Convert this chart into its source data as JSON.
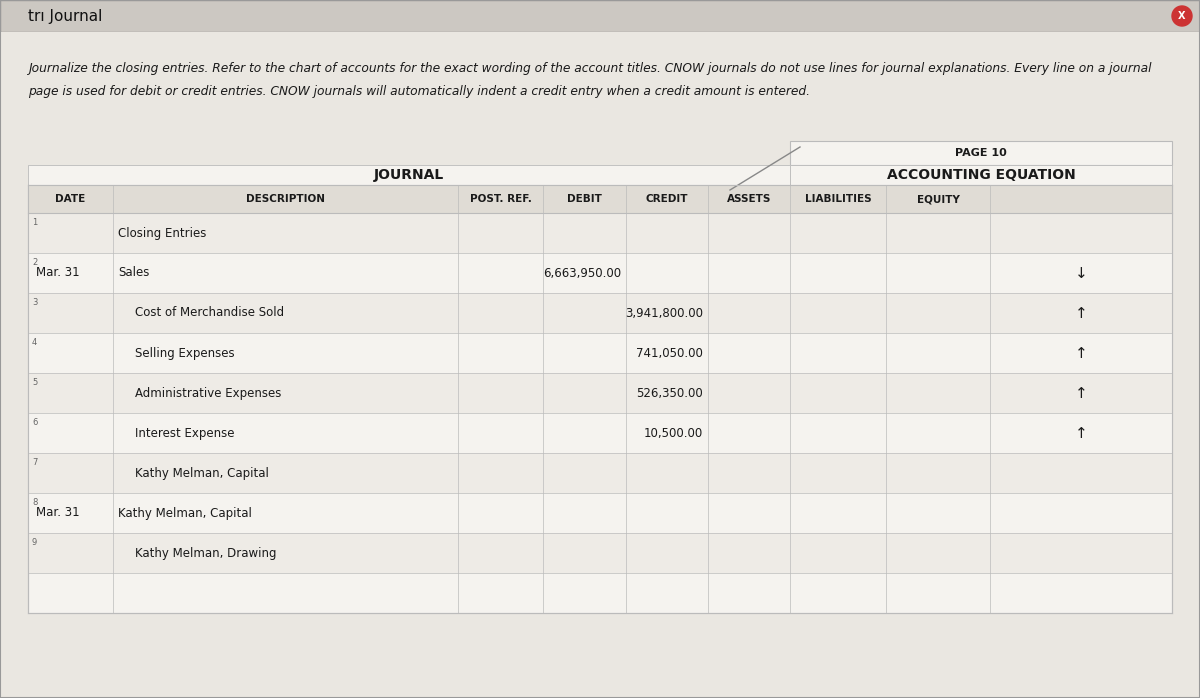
{
  "title_bar_text": "trı Journal",
  "close_button_color": "#cc3333",
  "instruction_line1": "Journalize the closing entries. Refer to the chart of accounts for the exact wording of the account titles. CNOW journals do not use lines for journal explanations. Every line on a journal",
  "instruction_line2": "page is used for debit or credit entries. CNOW journals will automatically indent a credit entry when a credit amount is entered.",
  "page_label": "PAGE 10",
  "journal_label": "JOURNAL",
  "accounting_eq_label": "ACCOUNTING EQUATION",
  "headers": [
    "DATE",
    "DESCRIPTION",
    "POST. REF.",
    "DEBIT",
    "CREDIT",
    "ASSETS",
    "LIABILITIES",
    "EQUITY"
  ],
  "rows": [
    {
      "row_num": "1",
      "date": "",
      "description": "Closing Entries",
      "desc_indent": false,
      "debit": "",
      "credit": "",
      "equity": ""
    },
    {
      "row_num": "2",
      "date": "Mar. 31",
      "description": "Sales",
      "desc_indent": false,
      "debit": "6,663,950.00",
      "credit": "",
      "equity": "↓"
    },
    {
      "row_num": "3",
      "date": "",
      "description": "Cost of Merchandise Sold",
      "desc_indent": true,
      "debit": "",
      "credit": "3,941,800.00",
      "equity": "↑"
    },
    {
      "row_num": "4",
      "date": "",
      "description": "Selling Expenses",
      "desc_indent": true,
      "debit": "",
      "credit": "741,050.00",
      "equity": "↑"
    },
    {
      "row_num": "5",
      "date": "",
      "description": "Administrative Expenses",
      "desc_indent": true,
      "debit": "",
      "credit": "526,350.00",
      "equity": "↑"
    },
    {
      "row_num": "6",
      "date": "",
      "description": "Interest Expense",
      "desc_indent": true,
      "debit": "",
      "credit": "10,500.00",
      "equity": "↑"
    },
    {
      "row_num": "7",
      "date": "",
      "description": "Kathy Melman, Capital",
      "desc_indent": true,
      "debit": "",
      "credit": "",
      "equity": ""
    },
    {
      "row_num": "8",
      "date": "Mar. 31",
      "description": "Kathy Melman, Capital",
      "desc_indent": false,
      "debit": "",
      "credit": "",
      "equity": ""
    },
    {
      "row_num": "9",
      "date": "",
      "description": "Kathy Melman, Drawing",
      "desc_indent": true,
      "debit": "",
      "credit": "",
      "equity": ""
    }
  ],
  "outer_bg": "#dedad4",
  "inner_bg": "#eae7e1",
  "table_bg": "#f5f3ef",
  "header_bg": "#e0dcd5",
  "row_alt_bg": "#eeebe6",
  "title_bar_bg": "#ccc8c2",
  "border_color": "#bbbbbb",
  "text_color": "#1a1a1a",
  "title_text_color": "#111111"
}
